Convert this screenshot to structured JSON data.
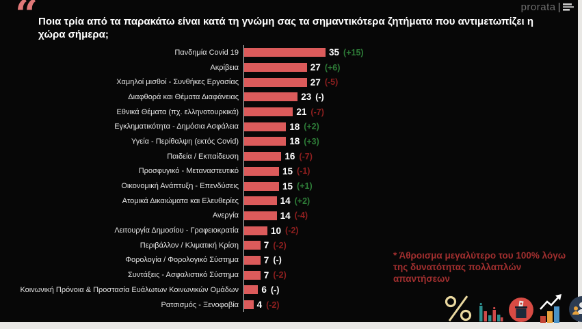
{
  "slide": {
    "quote_glyph": "“",
    "title": "Ποια τρία από τα παρακάτω είναι κατά τη γνώμη σας τα σημαντικότερα ζητήματα που αντιμετωπίζει η χώρα σήμερα;",
    "brand": "prorata",
    "footnote_line1": "* Άθροισμα μεγαλύτερο του 100% λόγω",
    "footnote_line2": "της δυνατότητας πολλαπλών απαντήσεων"
  },
  "colors": {
    "background": "#070707",
    "bar": "#dc5b5b",
    "up": "#2e7d38",
    "down": "#8e1f1f",
    "flat": "#ffffff",
    "footnote": "#a22f2f",
    "quote": "#e07878",
    "label": "#e6e6e6",
    "value": "#ffffff"
  },
  "chart_data": {
    "type": "bar",
    "orientation": "horizontal",
    "title": "Ποια τρία από τα παρακάτω είναι κατά τη γνώμη σας τα σημαντικότερα ζητήματα που αντιμετωπίζει η χώρα σήμερα;",
    "xlim": [
      0,
      40
    ],
    "grid": false,
    "legend": "none",
    "categories": [
      "Πανδημία Covid 19",
      "Ακρίβεια",
      "Χαμηλοί μισθοί - Συνθήκες Εργασίας",
      "Διαφθορά και Θέματα Διαφάνειας",
      "Εθνικά Θέματα (πχ. ελληνοτουρκικά)",
      "Εγκληματικότητα - Δημόσια Ασφάλεια",
      "Υγεία - Περίθαλψη (εκτός Covid)",
      "Παιδεία / Εκπαίδευση",
      "Προσφυγικό - Μεταναστευτικό",
      "Οικονομική Ανάπτυξη - Επενδύσεις",
      "Ατομικά Δικαιώματα και Ελευθερίες",
      "Ανεργία",
      "Λειτουργία Δημοσίου - Γραφειοκρατία",
      "Περιβάλλον / Κλιματική Κρίση",
      "Φορολογία / Φορολογικό Σύστημα",
      "Συντάξεις - Ασφαλιστικό Σύστημα",
      "Κοινωνική Πρόνοια & Προστασία Ευάλωτων Κοινωνικών Ομάδων",
      "Ρατσισμός - Ξενοφοβία"
    ],
    "values": [
      35,
      27,
      27,
      23,
      21,
      18,
      18,
      16,
      15,
      15,
      14,
      14,
      10,
      7,
      7,
      7,
      6,
      4
    ],
    "changes": [
      "(+15)",
      "(+6)",
      "(-5)",
      "(-)",
      "(-7)",
      "(+2)",
      "(+3)",
      "(-7)",
      "(-1)",
      "(+1)",
      "(+2)",
      "(-4)",
      "(-2)",
      "(-2)",
      "(-)",
      "(-2)",
      "(-)",
      "(-2)"
    ],
    "change_trend": [
      "up",
      "up",
      "down",
      "flat",
      "down",
      "up",
      "up",
      "down",
      "down",
      "up",
      "up",
      "down",
      "down",
      "down",
      "flat",
      "down",
      "flat",
      "down"
    ]
  },
  "icons": {
    "percent": "percent-icon",
    "bar_chart": "bar-chart-icon",
    "ballot": "ballot-box-icon",
    "growth": "growth-arrow-icon",
    "crowd": "crowd-icon"
  }
}
